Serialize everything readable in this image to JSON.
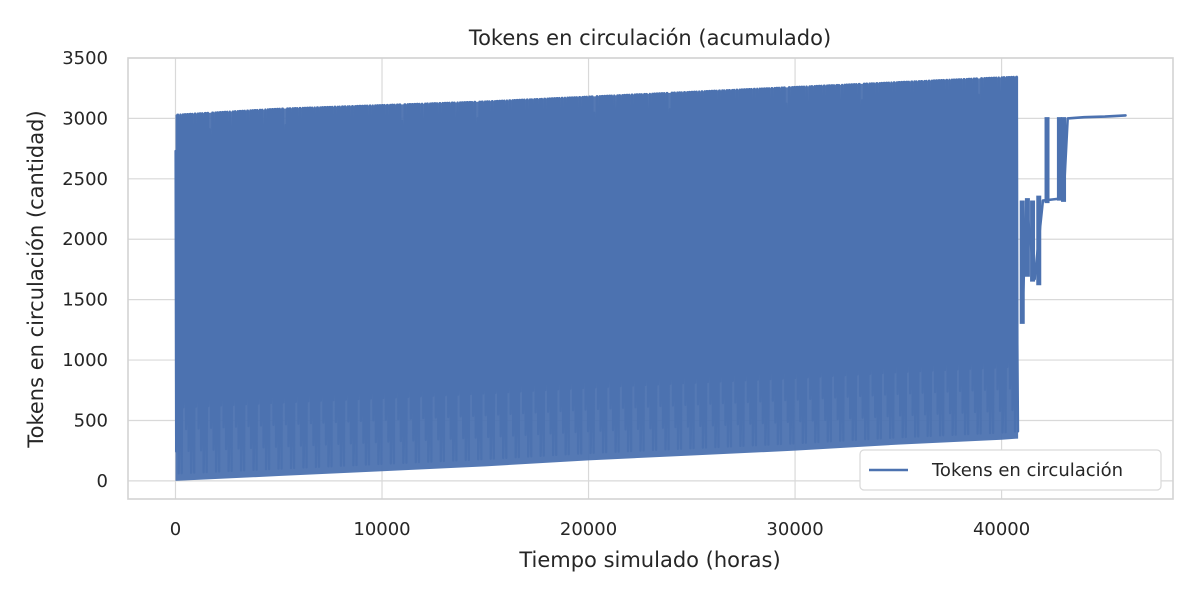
{
  "chart_data": {
    "type": "line",
    "title": "Tokens en circulación (acumulado)",
    "xlabel": "Tiempo simulado (horas)",
    "ylabel": "Tokens en circulación (cantidad)",
    "xlim": [
      -2300,
      48300
    ],
    "ylim": [
      -150,
      3500
    ],
    "xticks": [
      0,
      10000,
      20000,
      30000,
      40000
    ],
    "xtick_labels": [
      "0",
      "10000",
      "20000",
      "30000",
      "40000"
    ],
    "yticks": [
      0,
      500,
      1000,
      1500,
      2000,
      2500,
      3000,
      3500
    ],
    "ytick_labels": [
      "0",
      "500",
      "1000",
      "1500",
      "2000",
      "2500",
      "3000",
      "3500"
    ],
    "grid": true,
    "legend_position": "lower-right",
    "series": [
      {
        "name": "Tokens en circulación",
        "color": "#4c72b0",
        "description": "Rapid oscillation between a rising lower envelope and upper envelope up to ~40800 h, then a steadier rise.",
        "envelope": {
          "x": [
            0,
            5000,
            10000,
            15000,
            20000,
            25000,
            30000,
            35000,
            40000,
            40800
          ],
          "upper": [
            3030,
            3080,
            3110,
            3140,
            3180,
            3220,
            3260,
            3300,
            3340,
            3345
          ],
          "lower": [
            0,
            40,
            80,
            120,
            170,
            210,
            250,
            300,
            340,
            350
          ]
        },
        "tail": {
          "x": [
            41000,
            41200,
            41600,
            42000,
            42500,
            43000,
            43200,
            44000,
            45000,
            46000
          ],
          "y": [
            1330,
            2300,
            1670,
            2320,
            2330,
            2340,
            3000,
            3010,
            3015,
            3025
          ]
        }
      }
    ]
  }
}
